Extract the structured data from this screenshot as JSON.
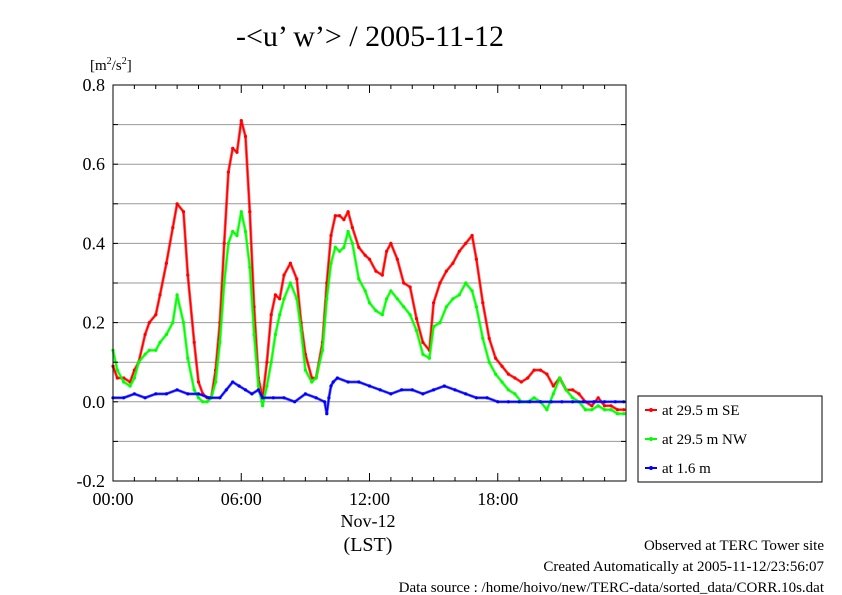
{
  "chart_data": {
    "type": "line",
    "title": "-<u’ w’> / 2005-11-12",
    "ylabel_unit": "[m2/s2]",
    "ylabel_unit_base": "[m",
    "ylabel_unit_mid": "/s",
    "ylabel_unit_end": "]",
    "ylabel_unit_sup": "2",
    "xlabel_date": "Nov-12",
    "xlabel_tz": "(LST)",
    "ylim": [
      -0.2,
      0.8
    ],
    "xlim_hours": [
      0,
      24
    ],
    "y_ticks": [
      "0.8",
      "0.6",
      "0.4",
      "0.2",
      "0.0",
      "-0.2"
    ],
    "y_tick_values": [
      0.8,
      0.6,
      0.4,
      0.2,
      0.0,
      -0.2
    ],
    "x_ticks": [
      "00:00",
      "06:00",
      "12:00",
      "18:00"
    ],
    "x_tick_values": [
      0,
      6,
      12,
      18
    ],
    "grid": true,
    "legend_position": "right",
    "series": [
      {
        "name": "at 29.5 m SE",
        "color": "#ff0000",
        "x": [
          0,
          0.2,
          0.5,
          0.8,
          1.0,
          1.2,
          1.5,
          1.7,
          2.0,
          2.2,
          2.5,
          2.8,
          3.0,
          3.3,
          3.5,
          3.8,
          4.0,
          4.2,
          4.4,
          4.6,
          4.8,
          5.0,
          5.2,
          5.4,
          5.6,
          5.8,
          6.0,
          6.2,
          6.4,
          6.6,
          6.8,
          7.0,
          7.2,
          7.4,
          7.6,
          7.8,
          8.0,
          8.3,
          8.6,
          8.8,
          9.0,
          9.3,
          9.5,
          9.8,
          10.0,
          10.2,
          10.4,
          10.6,
          10.8,
          11.0,
          11.2,
          11.5,
          11.8,
          12.0,
          12.3,
          12.6,
          12.8,
          13.0,
          13.3,
          13.6,
          13.9,
          14.2,
          14.5,
          14.8,
          15.0,
          15.3,
          15.6,
          15.9,
          16.2,
          16.5,
          16.8,
          17.0,
          17.3,
          17.6,
          17.9,
          18.2,
          18.5,
          18.8,
          19.1,
          19.4,
          19.7,
          20.0,
          20.3,
          20.6,
          20.9,
          21.2,
          21.5,
          21.8,
          22.1,
          22.4,
          22.7,
          23.0,
          23.3,
          23.6,
          23.9
        ],
        "values": [
          0.09,
          0.06,
          0.06,
          0.05,
          0.08,
          0.1,
          0.17,
          0.2,
          0.22,
          0.27,
          0.35,
          0.44,
          0.5,
          0.48,
          0.32,
          0.15,
          0.05,
          0.02,
          0.01,
          0.01,
          0.08,
          0.2,
          0.4,
          0.58,
          0.64,
          0.63,
          0.71,
          0.67,
          0.48,
          0.24,
          0.06,
          0.01,
          0.1,
          0.22,
          0.27,
          0.26,
          0.32,
          0.35,
          0.31,
          0.2,
          0.12,
          0.06,
          0.06,
          0.15,
          0.3,
          0.42,
          0.47,
          0.47,
          0.46,
          0.48,
          0.44,
          0.39,
          0.37,
          0.36,
          0.33,
          0.32,
          0.38,
          0.4,
          0.36,
          0.3,
          0.29,
          0.21,
          0.15,
          0.13,
          0.25,
          0.3,
          0.33,
          0.35,
          0.38,
          0.4,
          0.42,
          0.36,
          0.25,
          0.16,
          0.11,
          0.09,
          0.07,
          0.06,
          0.05,
          0.06,
          0.08,
          0.08,
          0.07,
          0.04,
          0.06,
          0.03,
          0.03,
          0.02,
          0.0,
          -0.01,
          0.01,
          -0.01,
          -0.01,
          -0.02,
          -0.02
        ]
      },
      {
        "name": "at 29.5 m NW",
        "color": "#00ff00",
        "x": [
          0,
          0.2,
          0.5,
          0.8,
          1.0,
          1.2,
          1.5,
          1.7,
          2.0,
          2.2,
          2.5,
          2.8,
          3.0,
          3.3,
          3.5,
          3.8,
          4.0,
          4.2,
          4.4,
          4.6,
          4.8,
          5.0,
          5.2,
          5.4,
          5.6,
          5.8,
          6.0,
          6.2,
          6.4,
          6.6,
          6.8,
          7.0,
          7.2,
          7.4,
          7.6,
          7.8,
          8.0,
          8.3,
          8.6,
          8.8,
          9.0,
          9.3,
          9.5,
          9.8,
          10.0,
          10.2,
          10.4,
          10.6,
          10.8,
          11.0,
          11.2,
          11.5,
          11.8,
          12.0,
          12.3,
          12.6,
          12.8,
          13.0,
          13.3,
          13.6,
          13.9,
          14.2,
          14.5,
          14.8,
          15.0,
          15.3,
          15.6,
          15.9,
          16.2,
          16.5,
          16.8,
          17.0,
          17.3,
          17.6,
          17.9,
          18.2,
          18.5,
          18.8,
          19.1,
          19.4,
          19.7,
          20.0,
          20.3,
          20.6,
          20.9,
          21.2,
          21.5,
          21.8,
          22.1,
          22.4,
          22.7,
          23.0,
          23.3,
          23.6,
          23.9
        ],
        "values": [
          0.13,
          0.08,
          0.05,
          0.04,
          0.06,
          0.1,
          0.12,
          0.13,
          0.13,
          0.15,
          0.17,
          0.2,
          0.27,
          0.2,
          0.11,
          0.03,
          0.01,
          0.0,
          0.0,
          0.01,
          0.05,
          0.15,
          0.3,
          0.4,
          0.43,
          0.42,
          0.48,
          0.43,
          0.34,
          0.17,
          0.04,
          -0.01,
          0.04,
          0.1,
          0.17,
          0.22,
          0.26,
          0.3,
          0.26,
          0.18,
          0.08,
          0.05,
          0.06,
          0.13,
          0.26,
          0.35,
          0.39,
          0.38,
          0.39,
          0.43,
          0.4,
          0.31,
          0.28,
          0.25,
          0.23,
          0.22,
          0.26,
          0.28,
          0.26,
          0.24,
          0.22,
          0.18,
          0.12,
          0.11,
          0.19,
          0.2,
          0.24,
          0.26,
          0.27,
          0.3,
          0.28,
          0.24,
          0.16,
          0.1,
          0.07,
          0.05,
          0.03,
          0.02,
          0.0,
          0.0,
          0.01,
          0.0,
          -0.02,
          0.02,
          0.06,
          0.03,
          0.01,
          0.0,
          -0.02,
          -0.02,
          -0.01,
          -0.02,
          -0.02,
          -0.03,
          -0.03
        ]
      },
      {
        "name": "at 1.6 m",
        "color": "#0000ff",
        "x": [
          0,
          0.5,
          1.0,
          1.5,
          2.0,
          2.5,
          3.0,
          3.5,
          4.0,
          4.5,
          5.0,
          5.3,
          5.6,
          5.9,
          6.2,
          6.5,
          6.8,
          7.0,
          7.5,
          8.0,
          8.5,
          9.0,
          9.5,
          9.9,
          10.0,
          10.1,
          10.2,
          10.3,
          10.5,
          11.0,
          11.5,
          12.0,
          12.5,
          13.0,
          13.5,
          14.0,
          14.5,
          15.0,
          15.5,
          16.0,
          16.5,
          17.0,
          17.5,
          18.0,
          18.5,
          19.0,
          19.5,
          20.0,
          20.5,
          21.0,
          21.5,
          22.0,
          22.5,
          23.0,
          23.5,
          23.9
        ],
        "values": [
          0.01,
          0.01,
          0.02,
          0.01,
          0.02,
          0.02,
          0.03,
          0.02,
          0.02,
          0.01,
          0.01,
          0.03,
          0.05,
          0.04,
          0.03,
          0.02,
          0.03,
          0.01,
          0.01,
          0.01,
          0.0,
          0.02,
          0.01,
          0.0,
          -0.03,
          0.01,
          0.04,
          0.05,
          0.06,
          0.05,
          0.05,
          0.04,
          0.03,
          0.02,
          0.03,
          0.03,
          0.02,
          0.03,
          0.04,
          0.03,
          0.02,
          0.01,
          0.01,
          0.0,
          0.0,
          0.0,
          0.0,
          0.0,
          0.0,
          0.0,
          0.0,
          0.0,
          0.0,
          0.0,
          0.0,
          0.0
        ]
      }
    ]
  },
  "footer": {
    "line1": "Observed at TERC Tower site",
    "line2": "Created Automatically at 2005-11-12/23:56:07",
    "line3": "Data source : /home/hoivo/new/TERC-data/sorted_data/CORR.10s.dat"
  }
}
